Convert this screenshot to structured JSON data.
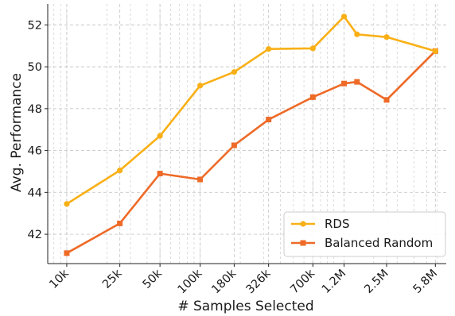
{
  "chart_data": {
    "type": "line",
    "title": "",
    "xlabel": "# Samples Selected",
    "ylabel": "Avg. Performance",
    "x_scale": "log",
    "x": [
      10000,
      25000,
      50000,
      100000,
      180000,
      326000,
      700000,
      1200000,
      1500000,
      2500000,
      5800000
    ],
    "x_tick_values": [
      10000,
      25000,
      50000,
      100000,
      180000,
      326000,
      700000,
      1200000,
      2500000,
      5800000
    ],
    "x_tick_labels": [
      "10k",
      "25k",
      "50k",
      "100k",
      "180k",
      "326k",
      "700k",
      "1.2M",
      "2.5M",
      "5.8M"
    ],
    "y_ticks": [
      42,
      44,
      46,
      48,
      50,
      52
    ],
    "ylim": [
      40.6,
      53.0
    ],
    "grid": true,
    "legend_position": "bottom-right",
    "series": [
      {
        "name": "RDS",
        "color": "#F9B016",
        "marker": "circle",
        "values": [
          43.45,
          45.05,
          46.7,
          49.1,
          49.75,
          50.85,
          50.88,
          52.4,
          51.55,
          51.42,
          50.75
        ]
      },
      {
        "name": "Balanced Random",
        "color": "#EE6A27",
        "marker": "square",
        "values": [
          41.1,
          42.52,
          44.9,
          44.62,
          46.25,
          47.48,
          48.55,
          49.2,
          49.28,
          48.42,
          50.75
        ]
      }
    ]
  }
}
